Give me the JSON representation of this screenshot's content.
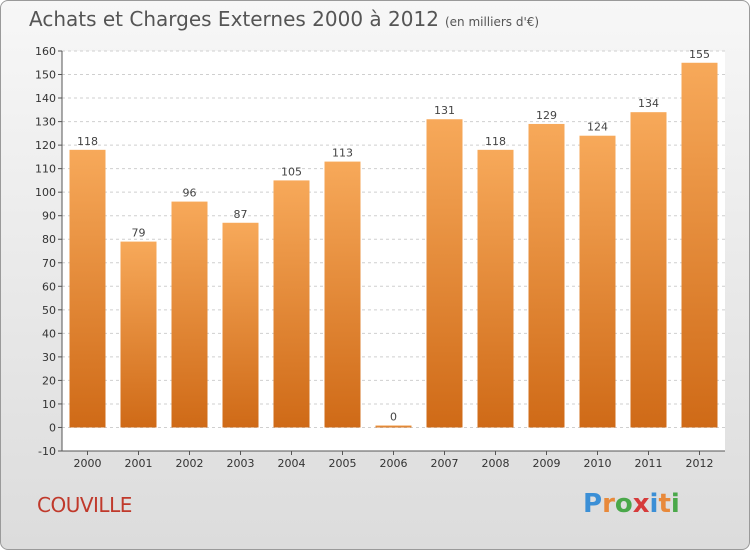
{
  "header": {
    "title": "Achats et Charges Externes 2000 à 2012",
    "unit": "(en milliers d'€)"
  },
  "footer": {
    "commune": "COUVILLE",
    "logo_letters": [
      "P",
      "r",
      "o",
      "x",
      "i",
      "t",
      "i"
    ],
    "logo_colors": [
      "#3b8fd6",
      "#e8893a",
      "#4aa84a",
      "#d63b3b",
      "#3b8fd6",
      "#e8893a",
      "#4aa84a"
    ]
  },
  "colors": {
    "bar_top": "#f7a95a",
    "bar_bottom": "#cf6a17",
    "grid": "#cfcfcf",
    "axis": "#555555"
  },
  "chart_data": {
    "type": "bar",
    "categories": [
      "2000",
      "2001",
      "2002",
      "2003",
      "2004",
      "2005",
      "2006",
      "2007",
      "2008",
      "2009",
      "2010",
      "2011",
      "2012"
    ],
    "values": [
      118,
      79,
      96,
      87,
      105,
      113,
      0,
      131,
      118,
      129,
      124,
      134,
      155
    ],
    "ylim": [
      -10,
      160
    ],
    "yticks": [
      -10,
      0,
      10,
      20,
      30,
      40,
      50,
      60,
      70,
      80,
      90,
      100,
      110,
      120,
      130,
      140,
      150,
      160
    ],
    "grid": true
  }
}
